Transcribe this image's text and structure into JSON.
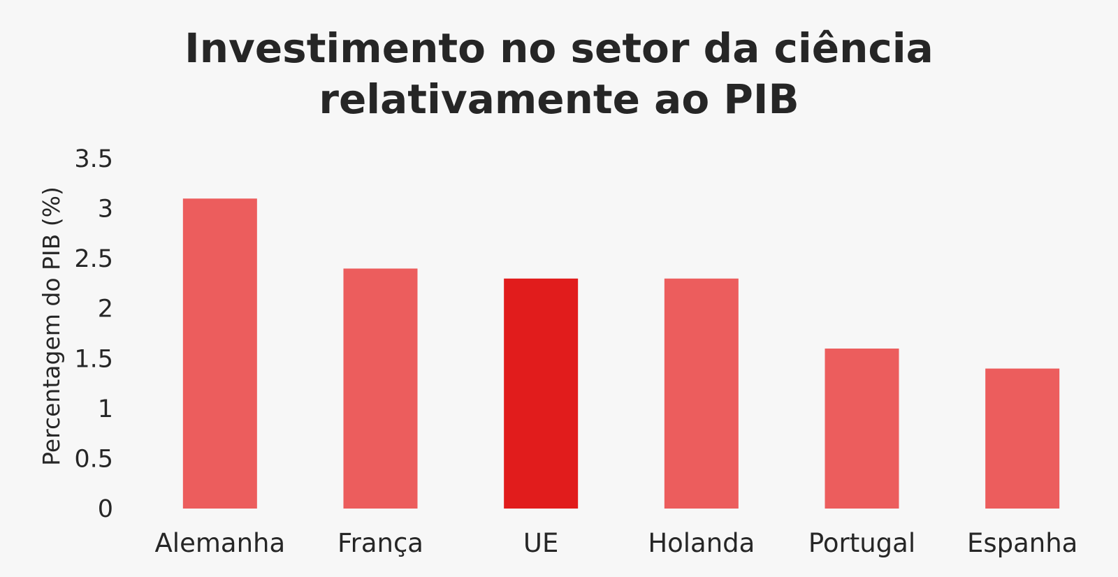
{
  "chart_data": {
    "type": "bar",
    "title_lines": [
      "Investimento no setor da ciência",
      "relativamente ao PIB"
    ],
    "xlabel": "",
    "ylabel": "Percentagem do PIB (%)",
    "categories": [
      "Alemanha",
      "França",
      "UE",
      "Holanda",
      "Portugal",
      "Espanha"
    ],
    "values": [
      3.1,
      2.4,
      2.3,
      2.3,
      1.6,
      1.4
    ],
    "highlight": [
      false,
      false,
      true,
      false,
      false,
      false
    ],
    "ylim": [
      0,
      3.5
    ],
    "yticks": [
      0,
      0.5,
      1,
      1.5,
      2,
      2.5,
      3,
      3.5
    ],
    "ytick_labels": [
      "0",
      "0.5",
      "1",
      "1.5",
      "2",
      "2.5",
      "3",
      "3.5"
    ],
    "grid": false,
    "legend": "none",
    "colors": {
      "bar": "#ec5d5d",
      "highlight": "#e11c1c",
      "background": "#f7f7f7",
      "text": "#262626"
    }
  }
}
